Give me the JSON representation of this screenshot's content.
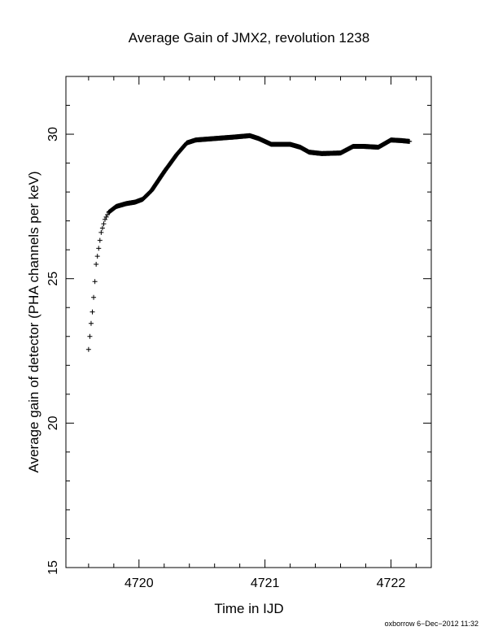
{
  "chart_data": {
    "type": "scatter",
    "title": "Average Gain of JMX2, revolution 1238",
    "xlabel": "Time in IJD",
    "ylabel": "Average gain of detector (PHA channels per keV)",
    "xlim": [
      4719.42,
      4722.32
    ],
    "ylim": [
      15,
      32
    ],
    "xticks": [
      4720,
      4721,
      4722
    ],
    "yticks": [
      15,
      20,
      25,
      30
    ],
    "x_minor_step": 0.2,
    "y_minor_step": 1,
    "marker": "+",
    "grid": false,
    "color": "#000000",
    "curve_knots": [
      [
        4719.6,
        22.55
      ],
      [
        4719.61,
        23.0
      ],
      [
        4719.62,
        23.45
      ],
      [
        4719.63,
        23.85
      ],
      [
        4719.64,
        24.35
      ],
      [
        4719.65,
        24.9
      ],
      [
        4719.66,
        25.5
      ],
      [
        4719.68,
        26.05
      ],
      [
        4719.7,
        26.6
      ],
      [
        4719.73,
        27.05
      ],
      [
        4719.76,
        27.3
      ],
      [
        4719.82,
        27.5
      ],
      [
        4719.9,
        27.6
      ],
      [
        4719.97,
        27.65
      ],
      [
        4720.03,
        27.75
      ],
      [
        4720.1,
        28.05
      ],
      [
        4720.2,
        28.7
      ],
      [
        4720.3,
        29.3
      ],
      [
        4720.38,
        29.7
      ],
      [
        4720.45,
        29.8
      ],
      [
        4720.6,
        29.85
      ],
      [
        4720.75,
        29.9
      ],
      [
        4720.88,
        29.95
      ],
      [
        4720.95,
        29.85
      ],
      [
        4721.05,
        29.65
      ],
      [
        4721.2,
        29.65
      ],
      [
        4721.28,
        29.55
      ],
      [
        4721.35,
        29.38
      ],
      [
        4721.45,
        29.33
      ],
      [
        4721.6,
        29.35
      ],
      [
        4721.7,
        29.58
      ],
      [
        4721.78,
        29.58
      ],
      [
        4721.9,
        29.55
      ],
      [
        4722.0,
        29.8
      ],
      [
        4722.08,
        29.78
      ],
      [
        4722.15,
        29.75
      ]
    ]
  },
  "footer": "oxborrow 6−Dec−2012 11:32"
}
